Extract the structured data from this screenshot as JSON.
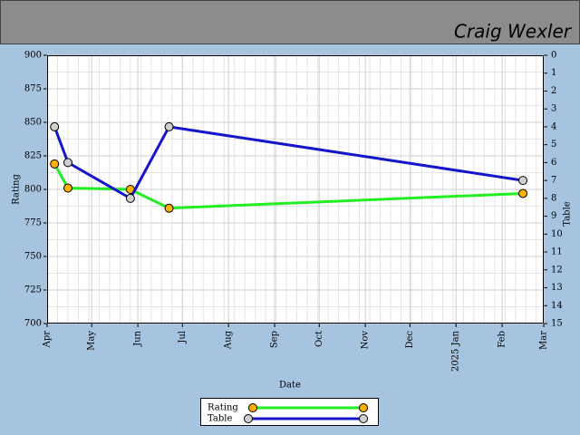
{
  "header": {
    "title": "Craig Wexler"
  },
  "chart_data": {
    "type": "line",
    "x_label": "Date",
    "y_label": "Rating",
    "y2_label": "Table",
    "xlim": [
      0,
      334
    ],
    "xticks": [
      {
        "value": 0,
        "label": "Apr"
      },
      {
        "value": 30,
        "label": "May"
      },
      {
        "value": 61,
        "label": "Jun"
      },
      {
        "value": 91,
        "label": "Jul"
      },
      {
        "value": 122,
        "label": "Aug"
      },
      {
        "value": 153,
        "label": "Sep"
      },
      {
        "value": 183,
        "label": "Oct"
      },
      {
        "value": 214,
        "label": "Nov"
      },
      {
        "value": 244,
        "label": "Dec"
      },
      {
        "value": 275,
        "label": "2025 Jan"
      },
      {
        "value": 306,
        "label": "Feb"
      },
      {
        "value": 334,
        "label": "Mar"
      }
    ],
    "ylim": [
      700,
      900
    ],
    "yticks": [
      700,
      725,
      750,
      775,
      800,
      825,
      850,
      875,
      900
    ],
    "y2lim": [
      15,
      0
    ],
    "y2ticks": [
      0,
      1,
      2,
      3,
      4,
      5,
      6,
      7,
      8,
      9,
      10,
      11,
      12,
      13,
      14,
      15
    ],
    "grid": true,
    "series": [
      {
        "name": "Rating",
        "color": "#22ee22",
        "marker_color": "#ffb000",
        "x": [
          5,
          14,
          56,
          82,
          320
        ],
        "values": [
          819,
          801,
          800,
          786,
          797
        ]
      },
      {
        "name": "Table",
        "axis": "y2",
        "color": "#1515cc",
        "marker_color": "#d0d0d0",
        "x": [
          5,
          14,
          56,
          82,
          320
        ],
        "values": [
          4,
          6,
          8,
          4,
          7
        ]
      }
    ]
  }
}
